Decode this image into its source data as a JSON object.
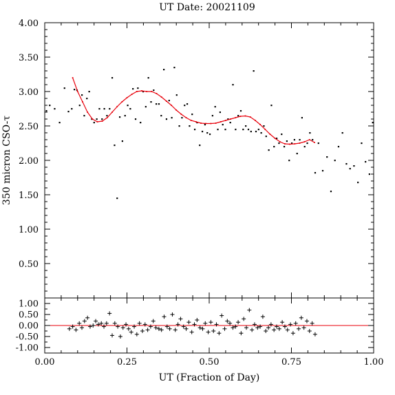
{
  "chart_data": {
    "type": "scatter",
    "title": "UT Date: 20021109",
    "xlabel": "UT (Fraction of Day)",
    "ylabel": "350 micron CSO-τ",
    "xlim": [
      0,
      1
    ],
    "top_panel": {
      "ylim": [
        0,
        4
      ],
      "yticks": [
        "0.50",
        "1.00",
        "1.50",
        "2.00",
        "2.50",
        "3.00",
        "3.50",
        "4.00"
      ],
      "points_x": [
        0.005,
        0.015,
        0.03,
        0.045,
        0.06,
        0.072,
        0.082,
        0.09,
        0.098,
        0.106,
        0.113,
        0.12,
        0.128,
        0.135,
        0.143,
        0.15,
        0.158,
        0.166,
        0.174,
        0.181,
        0.189,
        0.197,
        0.205,
        0.212,
        0.22,
        0.228,
        0.236,
        0.244,
        0.252,
        0.26,
        0.268,
        0.276,
        0.283,
        0.291,
        0.299,
        0.307,
        0.315,
        0.323,
        0.331,
        0.339,
        0.347,
        0.354,
        0.362,
        0.37,
        0.378,
        0.386,
        0.394,
        0.401,
        0.409,
        0.417,
        0.425,
        0.433,
        0.44,
        0.448,
        0.456,
        0.463,
        0.471,
        0.479,
        0.487,
        0.494,
        0.502,
        0.51,
        0.518,
        0.526,
        0.533,
        0.541,
        0.549,
        0.557,
        0.564,
        0.572,
        0.58,
        0.588,
        0.596,
        0.603,
        0.611,
        0.619,
        0.627,
        0.635,
        0.642,
        0.65,
        0.658,
        0.666,
        0.673,
        0.681,
        0.689,
        0.697,
        0.705,
        0.712,
        0.72,
        0.728,
        0.736,
        0.743,
        0.751,
        0.759,
        0.767,
        0.775,
        0.782,
        0.79,
        0.798,
        0.806,
        0.814,
        0.822,
        0.832,
        0.845,
        0.858,
        0.87,
        0.882,
        0.893,
        0.905,
        0.917,
        0.928,
        0.94,
        0.952,
        0.963,
        0.975,
        0.987,
        0.997
      ],
      "points_y": [
        2.72,
        2.8,
        2.75,
        2.55,
        3.05,
        2.71,
        2.75,
        3.03,
        3.02,
        2.8,
        2.95,
        2.65,
        2.9,
        3.0,
        2.6,
        2.55,
        2.6,
        2.75,
        2.6,
        2.75,
        2.65,
        2.75,
        3.2,
        2.22,
        1.45,
        2.63,
        2.28,
        2.65,
        2.8,
        2.75,
        3.04,
        2.6,
        3.05,
        2.55,
        3.0,
        2.78,
        3.2,
        2.85,
        3.02,
        2.82,
        2.82,
        2.65,
        3.32,
        2.6,
        2.87,
        2.62,
        3.35,
        2.95,
        2.5,
        2.62,
        2.8,
        2.82,
        2.5,
        2.67,
        2.45,
        2.55,
        2.22,
        2.42,
        2.52,
        2.4,
        2.38,
        2.65,
        2.78,
        2.45,
        2.7,
        2.52,
        2.45,
        2.6,
        2.55,
        3.1,
        2.45,
        2.65,
        2.72,
        2.45,
        2.5,
        2.45,
        2.42,
        3.3,
        2.42,
        2.45,
        2.4,
        2.5,
        2.35,
        2.15,
        2.8,
        2.2,
        2.32,
        2.25,
        2.38,
        2.2,
        2.28,
        2.0,
        2.25,
        2.3,
        2.1,
        2.3,
        2.62,
        2.2,
        2.25,
        2.4,
        2.3,
        1.82,
        2.25,
        1.85,
        2.05,
        1.55,
        2.0,
        2.2,
        2.4,
        1.95,
        1.88,
        1.92,
        1.68,
        2.25,
        1.98,
        1.8,
        2.55
      ],
      "fit_x": [
        0.085,
        0.1,
        0.115,
        0.13,
        0.145,
        0.16,
        0.175,
        0.19,
        0.205,
        0.22,
        0.235,
        0.25,
        0.265,
        0.28,
        0.295,
        0.31,
        0.325,
        0.34,
        0.355,
        0.37,
        0.385,
        0.4,
        0.415,
        0.43,
        0.445,
        0.46,
        0.475,
        0.49,
        0.505,
        0.52,
        0.535,
        0.55,
        0.565,
        0.58,
        0.595,
        0.61,
        0.625,
        0.64,
        0.655,
        0.67,
        0.685,
        0.7,
        0.715,
        0.73,
        0.745,
        0.76,
        0.775,
        0.79,
        0.805,
        0.82
      ],
      "fit_y": [
        3.2,
        3.0,
        2.85,
        2.7,
        2.6,
        2.56,
        2.57,
        2.62,
        2.7,
        2.78,
        2.85,
        2.91,
        2.96,
        3.0,
        3.01,
        3.0,
        3.0,
        2.97,
        2.92,
        2.86,
        2.8,
        2.73,
        2.67,
        2.62,
        2.58,
        2.56,
        2.54,
        2.535,
        2.535,
        2.54,
        2.56,
        2.58,
        2.6,
        2.62,
        2.64,
        2.645,
        2.63,
        2.58,
        2.52,
        2.45,
        2.38,
        2.32,
        2.27,
        2.24,
        2.235,
        2.24,
        2.25,
        2.27,
        2.3,
        2.26
      ]
    },
    "bottom_panel": {
      "ylim": [
        -1.25,
        1.25
      ],
      "yticks": [
        "-1.00",
        "-0.50",
        "0.00",
        "0.50",
        "1.00"
      ],
      "residuals_x": [
        0.075,
        0.085,
        0.095,
        0.105,
        0.113,
        0.121,
        0.13,
        0.138,
        0.147,
        0.155,
        0.163,
        0.172,
        0.18,
        0.188,
        0.197,
        0.205,
        0.213,
        0.222,
        0.23,
        0.238,
        0.247,
        0.255,
        0.263,
        0.272,
        0.28,
        0.288,
        0.297,
        0.305,
        0.313,
        0.322,
        0.33,
        0.338,
        0.347,
        0.355,
        0.363,
        0.372,
        0.38,
        0.388,
        0.397,
        0.405,
        0.413,
        0.422,
        0.43,
        0.438,
        0.447,
        0.455,
        0.463,
        0.472,
        0.48,
        0.488,
        0.497,
        0.505,
        0.513,
        0.522,
        0.53,
        0.538,
        0.547,
        0.555,
        0.563,
        0.572,
        0.58,
        0.588,
        0.597,
        0.605,
        0.613,
        0.622,
        0.63,
        0.638,
        0.647,
        0.655,
        0.663,
        0.672,
        0.68,
        0.688,
        0.697,
        0.705,
        0.713,
        0.722,
        0.73,
        0.738,
        0.747,
        0.755,
        0.763,
        0.772,
        0.78,
        0.788,
        0.797,
        0.805,
        0.813,
        0.822
      ],
      "residuals_y": [
        -0.15,
        -0.05,
        -0.2,
        0.1,
        -0.1,
        0.2,
        0.35,
        -0.05,
        0.0,
        0.2,
        0.05,
        0.1,
        -0.05,
        0.1,
        0.55,
        -0.45,
        0.1,
        -0.05,
        -0.5,
        -0.1,
        0.05,
        -0.15,
        -0.3,
        -0.05,
        -0.4,
        0.1,
        -0.25,
        0.05,
        -0.2,
        -0.05,
        0.2,
        -0.1,
        -0.15,
        -0.2,
        0.4,
        -0.05,
        -0.15,
        0.5,
        -0.2,
        0.05,
        0.3,
        -0.05,
        -0.15,
        0.15,
        -0.3,
        0.05,
        0.25,
        -0.1,
        -0.15,
        0.1,
        -0.3,
        0.15,
        -0.25,
        0.05,
        -0.35,
        0.45,
        -0.15,
        0.2,
        0.1,
        -0.1,
        -0.05,
        0.15,
        -0.35,
        0.3,
        -0.1,
        0.7,
        -0.2,
        0.05,
        -0.1,
        -0.05,
        0.4,
        -0.25,
        -0.1,
        0.05,
        -0.2,
        -0.05,
        -0.15,
        0.15,
        -0.05,
        -0.2,
        0.05,
        -0.35,
        0.1,
        -0.15,
        0.35,
        -0.1,
        0.2,
        -0.25,
        0.1,
        -0.4
      ],
      "zero_line": 0
    },
    "xticks": [
      "0.00",
      "0.25",
      "0.50",
      "0.75",
      "1.00"
    ],
    "grid": false,
    "colors": {
      "points": "#000000",
      "fit": "#e8000b",
      "zero_line": "#e8000b",
      "frame": "#000000"
    }
  }
}
